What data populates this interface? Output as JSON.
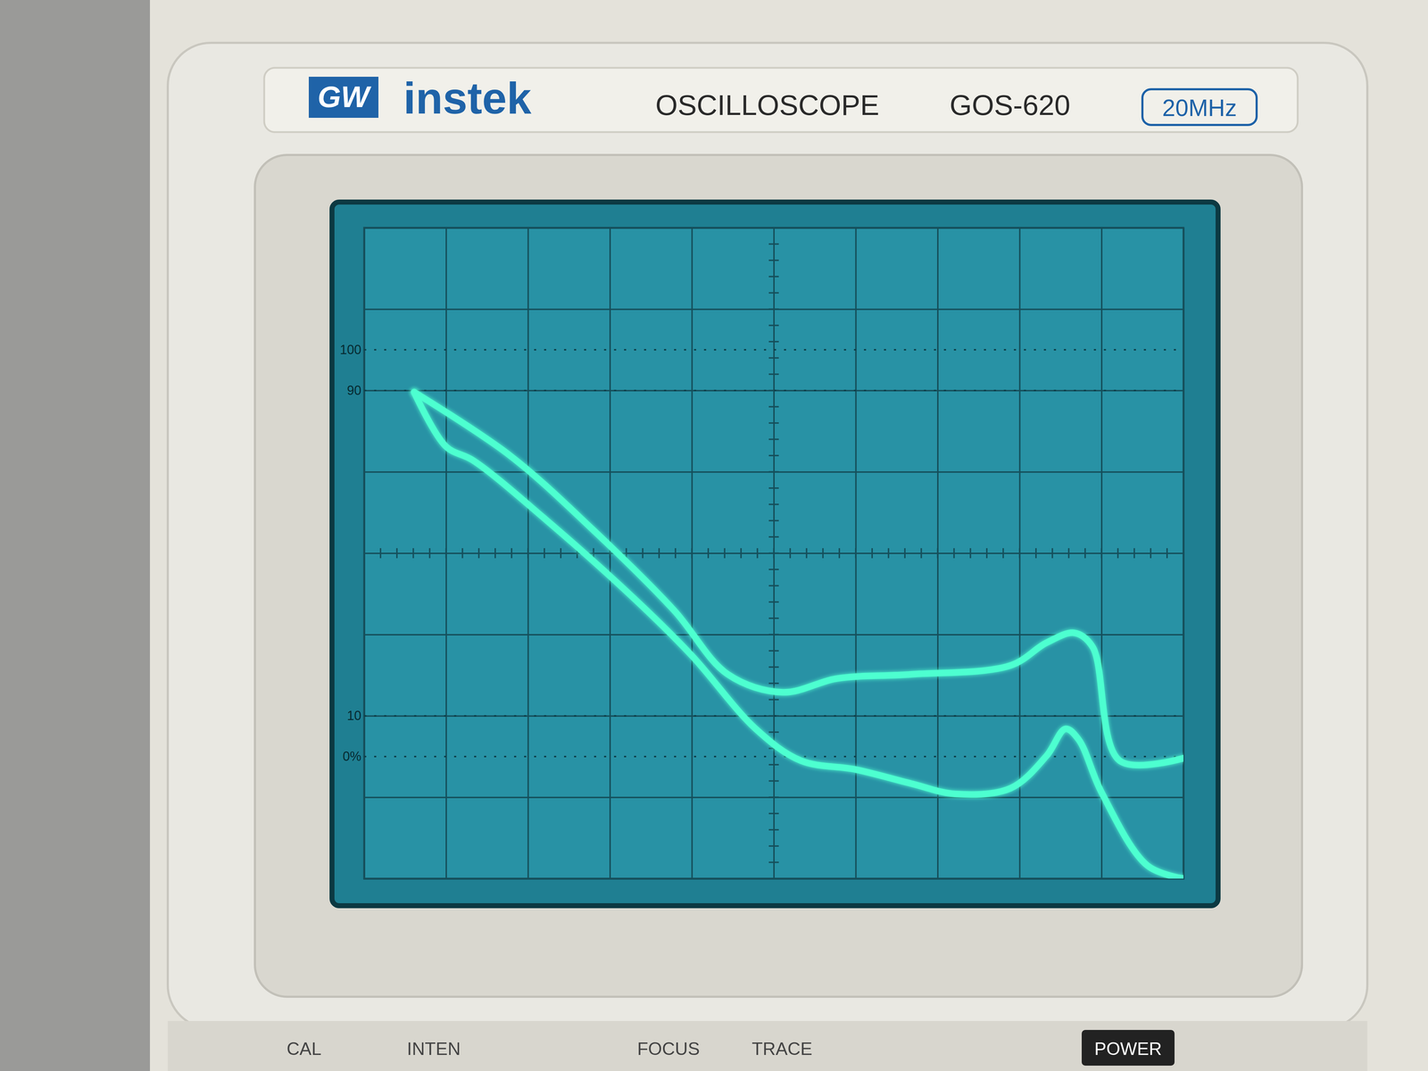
{
  "chart_data": {
    "type": "line",
    "xlim": [
      0,
      10
    ],
    "ylim": [
      -4,
      4
    ],
    "xticks": [
      0,
      1,
      2,
      3,
      4,
      5,
      6,
      7,
      8,
      9,
      10
    ],
    "yticks": [
      -4,
      -3,
      -2,
      -1,
      0,
      1,
      2,
      3,
      4
    ],
    "grid": true,
    "tick_labels": false,
    "annotations": [
      {
        "text": "100",
        "y": 2.5
      },
      {
        "text": "90",
        "y": 2
      },
      {
        "text": "10",
        "y": -2
      },
      {
        "text": "0%",
        "y": -2.5
      }
    ],
    "series": [
      {
        "color": "#4dffd0",
        "x": [
          0.61,
          1.78,
          2.78,
          3.78,
          4.44,
          5.11,
          5.78,
          6.67,
          7.89,
          8.33,
          8.67,
          8.89,
          9.22,
          10.0
        ],
        "values": [
          1.98,
          1.2,
          0.3,
          -0.7,
          -1.49,
          -1.71,
          -1.54,
          -1.49,
          -1.38,
          -1.1,
          -0.98,
          -1.15,
          -2.55,
          -2.52
        ]
      },
      {
        "color": "#4dffd0",
        "x": [
          0.61,
          1.0,
          1.33,
          2.22,
          3.33,
          4.0,
          4.78,
          5.33,
          6.0,
          6.67,
          7.22,
          7.89,
          8.33,
          8.56,
          8.72,
          9.0,
          9.56,
          10.0
        ],
        "values": [
          1.98,
          1.31,
          1.14,
          0.41,
          -0.59,
          -1.26,
          -2.16,
          -2.55,
          -2.66,
          -2.83,
          -2.96,
          -2.89,
          -2.49,
          -2.16,
          -2.29,
          -2.94,
          -3.84,
          -4.0
        ]
      }
    ]
  },
  "panel": {
    "brand_logo": "GW",
    "brand": "instek",
    "model_type": "OSCILLOSCOPE",
    "model": "GOS-620",
    "bandwidth": "20MHz",
    "controls": [
      "CAL",
      "INTEN",
      "FOCUS",
      "TRACE",
      "POWER"
    ]
  }
}
